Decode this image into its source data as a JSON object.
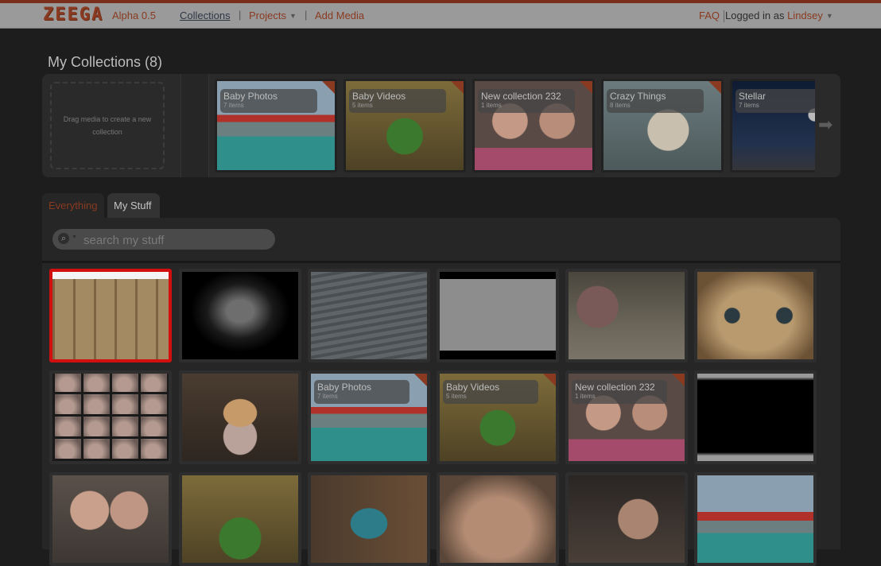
{
  "app": {
    "logo_text": "ZEEGA",
    "version": "Alpha 0.5"
  },
  "nav": {
    "collections": "Collections",
    "projects": "Projects",
    "add_media": "Add Media",
    "separator": "|",
    "faq": "FAQ",
    "logged_in_prefix": "Logged in as",
    "username": "Lindsey"
  },
  "collections": {
    "title": "My Collections (8)",
    "drop_hint": "Drag media to create a new collection",
    "items": [
      {
        "name": "Baby Photos",
        "count": "7 items"
      },
      {
        "name": "Baby Videos",
        "count": "5 items"
      },
      {
        "name": "New collection 232",
        "count": "1 items"
      },
      {
        "name": "Crazy Things",
        "count": "8 items"
      },
      {
        "name": "Stellar",
        "count": "7 items"
      }
    ]
  },
  "tabs": {
    "everything": "Everything",
    "my_stuff": "My Stuff"
  },
  "search": {
    "placeholder": "search my stuff",
    "value": ""
  },
  "media_grid": {
    "selected_index": 0,
    "rows": [
      [
        {
          "kind": "image",
          "subject": "cat in cardboard box"
        },
        {
          "kind": "image",
          "subject": "man in suit portrait"
        },
        {
          "kind": "image",
          "subject": "stone staircase"
        },
        {
          "kind": "image",
          "subject": "cartoon frame"
        },
        {
          "kind": "image",
          "subject": "woman with car"
        },
        {
          "kind": "image",
          "subject": "doll face"
        }
      ],
      [
        {
          "kind": "image",
          "subject": "baby photo grid"
        },
        {
          "kind": "image",
          "subject": "kewpie doll"
        },
        {
          "kind": "collection",
          "name": "Baby Photos",
          "count": "7 items"
        },
        {
          "kind": "collection",
          "name": "Baby Videos",
          "count": "5 items"
        },
        {
          "kind": "collection",
          "name": "New collection 232",
          "count": "1 items"
        },
        {
          "kind": "image",
          "subject": "black frame"
        }
      ],
      [
        {
          "kind": "image",
          "subject": "two babies"
        },
        {
          "kind": "image",
          "subject": "baby in watermelon"
        },
        {
          "kind": "image",
          "subject": "baby in seat"
        },
        {
          "kind": "image",
          "subject": "baby close-up"
        },
        {
          "kind": "image",
          "subject": "man with baby"
        },
        {
          "kind": "image",
          "subject": "baby on sign"
        }
      ]
    ]
  },
  "colors": {
    "accent": "#8a3a20",
    "selection": "#d10f0f",
    "background": "#1d1d1d"
  }
}
